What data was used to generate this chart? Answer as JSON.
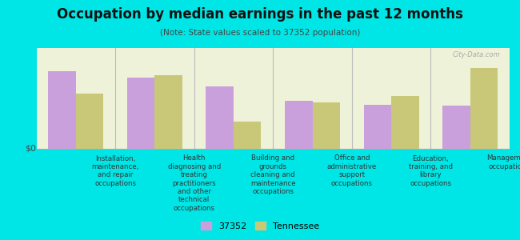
{
  "title": "Occupation by median earnings in the past 12 months",
  "subtitle": "(Note: State values scaled to 37352 population)",
  "categories": [
    "Installation,\nmaintenance,\nand repair\noccupations",
    "Health\ndiagnosing and\ntreating\npractitioners\nand other\ntechnical\noccupations",
    "Building and\ngrounds\ncleaning and\nmaintenance\noccupations",
    "Office and\nadministrative\nsupport\noccupations",
    "Education,\ntraining, and\nlibrary\noccupations",
    "Management\noccupations"
  ],
  "series_37352": [
    85,
    78,
    68,
    52,
    48,
    47
  ],
  "series_tennessee": [
    60,
    80,
    30,
    51,
    58,
    88
  ],
  "color_37352": "#c9a0dc",
  "color_tennessee": "#c8c878",
  "bar_width": 0.35,
  "background_color": "#00e5e5",
  "plot_bg_start": "#f0f4e0",
  "plot_bg_end": "#ffffff",
  "ylabel": "$0",
  "watermark": "City-Data.com",
  "legend_label_1": "37352",
  "legend_label_2": "Tennessee"
}
